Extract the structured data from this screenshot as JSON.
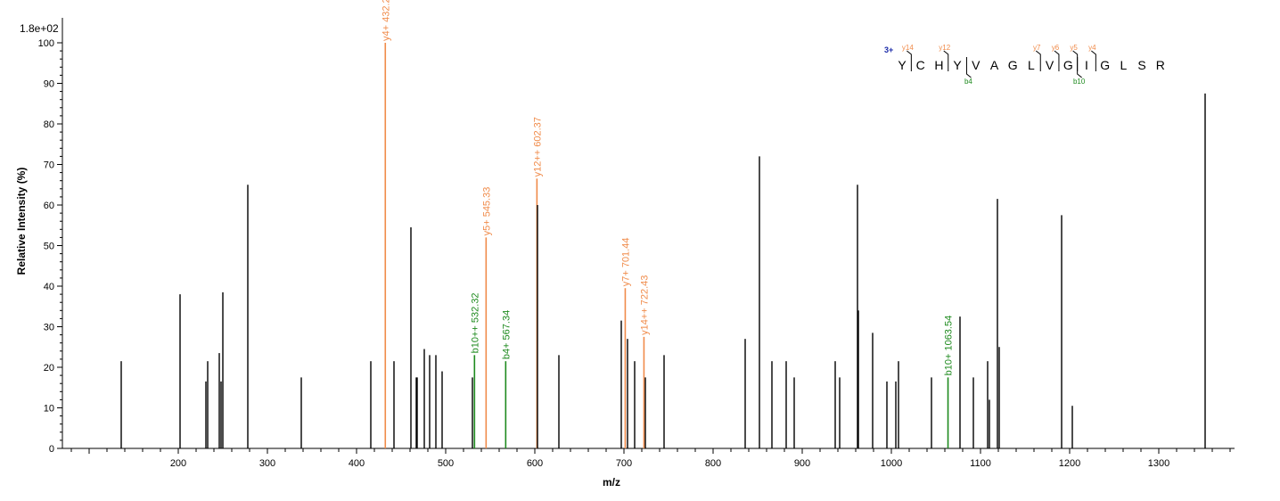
{
  "chart_data": {
    "type": "bar",
    "scale_label": "1.8e+02",
    "xlabel": "m/z",
    "ylabel": "Relative  Intensity (%)",
    "xlim": [
      70,
      1385
    ],
    "ylim": [
      0,
      100
    ],
    "xticks": [
      200,
      300,
      400,
      500,
      600,
      700,
      800,
      900,
      1000,
      1100,
      1200,
      1300
    ],
    "yticks": [
      0,
      10,
      20,
      30,
      40,
      50,
      60,
      70,
      80,
      90,
      100
    ],
    "colors": {
      "unassigned": "#000000",
      "y_ion": "#f08b4a",
      "b_ion": "#1e8a1e",
      "charge": "#1a2aa8"
    },
    "peaks": [
      {
        "mz": 136,
        "intensity": 21.5
      },
      {
        "mz": 202,
        "intensity": 38
      },
      {
        "mz": 231,
        "intensity": 16.5
      },
      {
        "mz": 233,
        "intensity": 21.5
      },
      {
        "mz": 246,
        "intensity": 23.5
      },
      {
        "mz": 248,
        "intensity": 16.5
      },
      {
        "mz": 250,
        "intensity": 38.5
      },
      {
        "mz": 278,
        "intensity": 65
      },
      {
        "mz": 338,
        "intensity": 17.5
      },
      {
        "mz": 416,
        "intensity": 21.5
      },
      {
        "mz": 432.27,
        "intensity": 100,
        "ion": "y",
        "label": "y4+ 432.27"
      },
      {
        "mz": 442,
        "intensity": 21.5
      },
      {
        "mz": 461,
        "intensity": 54.5
      },
      {
        "mz": 467,
        "intensity": 17.5
      },
      {
        "mz": 468,
        "intensity": 17.5
      },
      {
        "mz": 476,
        "intensity": 24.5
      },
      {
        "mz": 482,
        "intensity": 23
      },
      {
        "mz": 489,
        "intensity": 23
      },
      {
        "mz": 496,
        "intensity": 19
      },
      {
        "mz": 530,
        "intensity": 17.5
      },
      {
        "mz": 532.32,
        "intensity": 23,
        "ion": "b",
        "label": "b10++ 532.32"
      },
      {
        "mz": 545.33,
        "intensity": 52,
        "ion": "y",
        "label": "y5+ 545.33"
      },
      {
        "mz": 567.34,
        "intensity": 21.5,
        "ion": "b",
        "label": "b4+ 567.34"
      },
      {
        "mz": 602.37,
        "intensity": 66.5,
        "ion": "y",
        "label": "y12++ 602.37"
      },
      {
        "mz": 603,
        "intensity": 60
      },
      {
        "mz": 627,
        "intensity": 23
      },
      {
        "mz": 697,
        "intensity": 31.5
      },
      {
        "mz": 701.44,
        "intensity": 39.5,
        "ion": "y",
        "label": "y7+ 701.44"
      },
      {
        "mz": 704,
        "intensity": 27
      },
      {
        "mz": 712,
        "intensity": 21.5
      },
      {
        "mz": 722.43,
        "intensity": 27.5,
        "ion": "y",
        "label": "y14++ 722.43"
      },
      {
        "mz": 724,
        "intensity": 17.5
      },
      {
        "mz": 745,
        "intensity": 23
      },
      {
        "mz": 836,
        "intensity": 27
      },
      {
        "mz": 852,
        "intensity": 72
      },
      {
        "mz": 866,
        "intensity": 21.5
      },
      {
        "mz": 882,
        "intensity": 21.5
      },
      {
        "mz": 891,
        "intensity": 17.5
      },
      {
        "mz": 937,
        "intensity": 21.5
      },
      {
        "mz": 942,
        "intensity": 17.5
      },
      {
        "mz": 962,
        "intensity": 65
      },
      {
        "mz": 963,
        "intensity": 34
      },
      {
        "mz": 979,
        "intensity": 28.5
      },
      {
        "mz": 995,
        "intensity": 16.5
      },
      {
        "mz": 1005,
        "intensity": 16.5
      },
      {
        "mz": 1008,
        "intensity": 21.5
      },
      {
        "mz": 1045,
        "intensity": 17.5
      },
      {
        "mz": 1063.54,
        "intensity": 17.5,
        "ion": "b",
        "label": "b10+ 1063.54"
      },
      {
        "mz": 1077,
        "intensity": 32.5
      },
      {
        "mz": 1092,
        "intensity": 17.5
      },
      {
        "mz": 1108,
        "intensity": 21.5
      },
      {
        "mz": 1110,
        "intensity": 12
      },
      {
        "mz": 1119,
        "intensity": 61.5
      },
      {
        "mz": 1121,
        "intensity": 25
      },
      {
        "mz": 1191,
        "intensity": 57.5
      },
      {
        "mz": 1203,
        "intensity": 10.5
      },
      {
        "mz": 1352,
        "intensity": 87.5
      }
    ],
    "sequence": {
      "charge": "3+",
      "residues": [
        "Y",
        "C",
        "H",
        "Y",
        "V",
        "A",
        "G",
        "L",
        "V",
        "G",
        "I",
        "G",
        "L",
        "S",
        "R"
      ],
      "y_marks": [
        {
          "label": "y14",
          "after": 0
        },
        {
          "label": "y12",
          "after": 2
        },
        {
          "label": "y7",
          "after": 7
        },
        {
          "label": "y6",
          "after": 8
        },
        {
          "label": "y5",
          "after": 9
        },
        {
          "label": "y4",
          "after": 10
        }
      ],
      "b_marks": [
        {
          "label": "b4",
          "after": 3
        },
        {
          "label": "b10",
          "after": 9
        }
      ]
    }
  }
}
